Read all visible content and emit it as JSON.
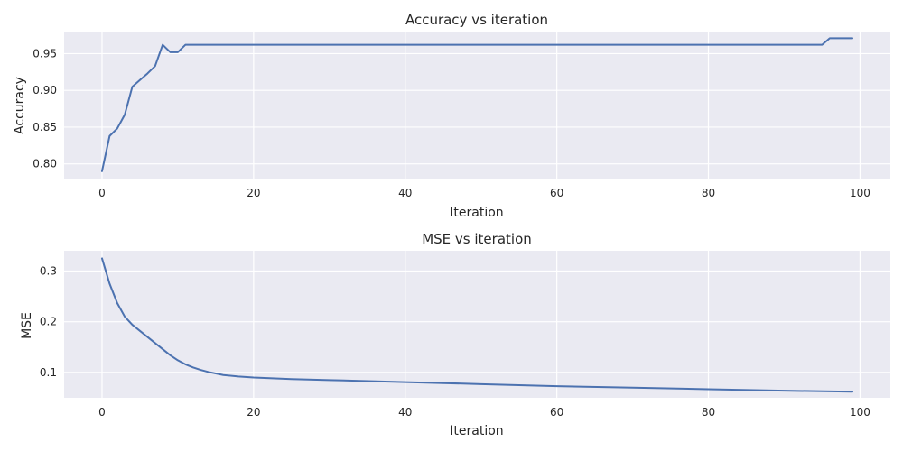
{
  "chart_data": [
    {
      "type": "line",
      "title": "Accuracy vs iteration",
      "xlabel": "Iteration",
      "ylabel": "Accuracy",
      "xlim": [
        -5,
        104
      ],
      "ylim": [
        0.78,
        0.98
      ],
      "xticks": [
        0,
        20,
        40,
        60,
        80,
        100
      ],
      "xtick_labels": [
        "0",
        "20",
        "40",
        "60",
        "80",
        "100"
      ],
      "yticks": [
        0.8,
        0.85,
        0.9,
        0.95
      ],
      "ytick_labels": [
        "0.80",
        "0.85",
        "0.90",
        "0.95"
      ],
      "grid": true,
      "series": [
        {
          "color": "#4c72b0",
          "x": [
            0,
            1,
            2,
            3,
            4,
            5,
            6,
            7,
            8,
            9,
            10,
            11,
            12,
            95,
            96,
            97,
            98,
            99
          ],
          "y": [
            0.79,
            0.838,
            0.848,
            0.867,
            0.905,
            0.914,
            0.923,
            0.933,
            0.962,
            0.952,
            0.952,
            0.962,
            0.962,
            0.962,
            0.971,
            0.971,
            0.971,
            0.971
          ]
        }
      ]
    },
    {
      "type": "line",
      "title": "MSE vs iteration",
      "xlabel": "Iteration",
      "ylabel": "MSE",
      "xlim": [
        -5,
        104
      ],
      "ylim": [
        0.05,
        0.34
      ],
      "xticks": [
        0,
        20,
        40,
        60,
        80,
        100
      ],
      "xtick_labels": [
        "0",
        "20",
        "40",
        "60",
        "80",
        "100"
      ],
      "yticks": [
        0.1,
        0.2,
        0.3
      ],
      "ytick_labels": [
        "0.1",
        "0.2",
        "0.3"
      ],
      "grid": true,
      "series": [
        {
          "color": "#4c72b0",
          "x": [
            0,
            1,
            2,
            3,
            4,
            5,
            6,
            7,
            8,
            9,
            10,
            11,
            12,
            13,
            14,
            15,
            16,
            18,
            20,
            25,
            30,
            40,
            50,
            60,
            70,
            80,
            90,
            99
          ],
          "y": [
            0.325,
            0.275,
            0.237,
            0.21,
            0.194,
            0.182,
            0.17,
            0.158,
            0.146,
            0.134,
            0.124,
            0.116,
            0.11,
            0.105,
            0.101,
            0.098,
            0.095,
            0.092,
            0.09,
            0.087,
            0.085,
            0.081,
            0.077,
            0.073,
            0.07,
            0.067,
            0.064,
            0.062
          ]
        }
      ]
    }
  ]
}
